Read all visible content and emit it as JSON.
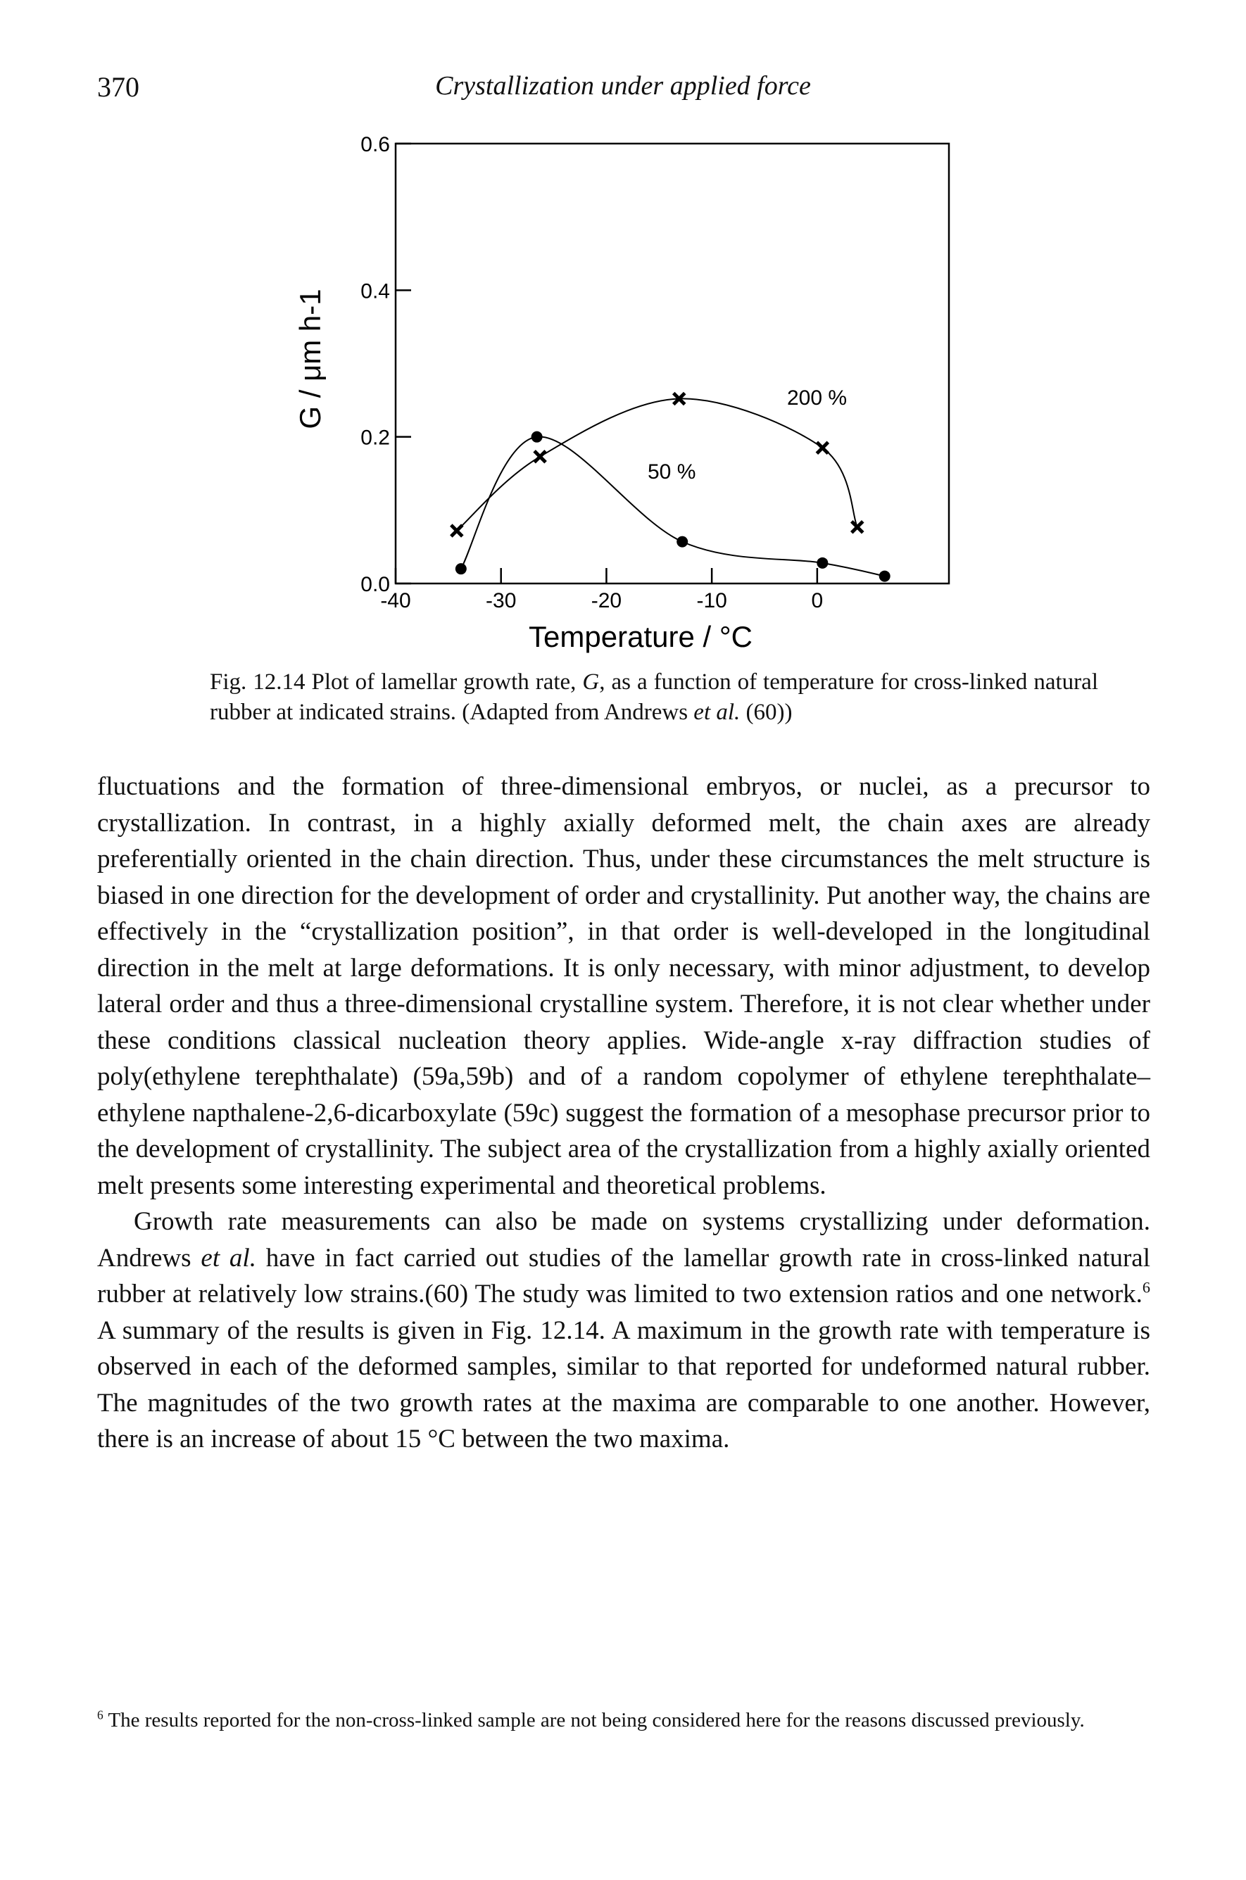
{
  "header": {
    "page_number": "370",
    "running_title": "Crystallization under applied force"
  },
  "chart_data": {
    "type": "scatter",
    "x_label": "Temperature / °C",
    "y_label": "G / μm h-1",
    "xlim": [
      -40,
      12.5
    ],
    "ylim": [
      0,
      0.6
    ],
    "xticks": [
      -40,
      -30,
      -20,
      -10,
      0
    ],
    "yticks": [
      {
        "value": 0,
        "label": "0.0"
      },
      0.2,
      0.4,
      0.6
    ],
    "series": [
      {
        "name": "50 %",
        "marker": "dot",
        "color": "#000000",
        "x": [
          -33.8,
          -26.6,
          -12.8,
          0.5,
          6.4
        ],
        "values": [
          0.02,
          0.2,
          0.057,
          0.028,
          0.01
        ]
      },
      {
        "name": "200 %",
        "marker": "cross",
        "color": "#000000",
        "x": [
          -34.2,
          -26.3,
          -13.1,
          0.5,
          3.8
        ],
        "values": [
          0.072,
          0.173,
          0.252,
          0.185,
          0.077
        ]
      }
    ]
  },
  "figure": {
    "caption": [
      "Fig. 12.14 Plot of lamellar growth rate, ",
      "G",
      ", as a function of temperature for cross-linked natural rubber at indicated strains. (Adapted from Andrews ",
      "et al.",
      " (60))"
    ]
  },
  "body": {
    "paragraphs": [
      [
        "fluctuations and the formation of three-dimensional embryos, or nuclei, as a precursor to crystallization. In contrast, in a highly axially deformed melt, the chain axes are already preferentially oriented in the chain direction. Thus, under these circumstances the melt structure is biased in one direction for the development of order and crystallinity. Put another way, the chains are effectively in the “crystallization position”, in that order is well-developed in the longitudinal direction in the melt at large deformations. It is only necessary, with minor adjustment, to develop lateral order and thus a three-dimensional crystalline system. Therefore, it is not clear whether under these conditions classical nucleation theory applies. Wide-angle x-ray diffraction studies of poly(ethylene terephthalate) (59a,59b) and of a random copolymer of ethylene terephthalate–ethylene napthalene-2,6-dicarboxylate (59c) suggest the formation of a mesophase precursor prior to the development of crystallinity. The subject area of the crystallization from a highly axially oriented melt presents some interesting experimental and theoretical problems."
      ],
      [
        "Growth rate measurements can also be made on systems crystallizing under deformation. Andrews ",
        "et al.",
        " have in fact carried out studies of the lamellar growth rate in cross-linked natural rubber at relatively low strains.(60) The study was limited to two extension ratios and one network.",
        "6",
        " A summary of the results is given in Fig. 12.14. A maximum in the growth rate with temperature is observed in each of the deformed samples, similar to that reported for undeformed natural rubber. The magnitudes of the two growth rates at the maxima are comparable to one another. However, there is an increase of about 15 °C between the two maxima."
      ]
    ]
  },
  "footnote": {
    "marker": "6",
    "text": "The results reported for the non-cross-linked sample are not being considered here for the reasons discussed previously."
  }
}
